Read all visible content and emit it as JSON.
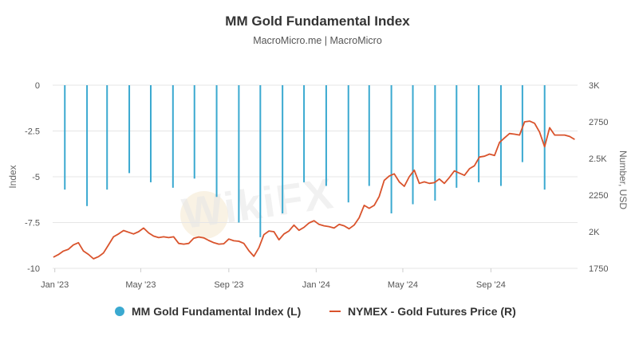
{
  "header": {
    "title": "MM Gold Fundamental Index",
    "subtitle": "MacroMicro.me | MacroMicro"
  },
  "watermark": "WikiFX",
  "colors": {
    "index_bars": "#3aa9d0",
    "gold_line": "#d9532c",
    "grid": "#e6e6e6"
  },
  "chart_data": {
    "type": "bar+line",
    "title": "MM Gold Fundamental Index",
    "subtitle": "MacroMicro.me | MacroMicro",
    "ylabel_left": "Index",
    "ylabel_right": "Number, USD",
    "ylim_left": [
      -10,
      0
    ],
    "ylim_right": [
      1750,
      3000
    ],
    "yticks_left": [
      "0",
      "-2.5",
      "-5",
      "-7.5",
      "-10"
    ],
    "yticks_right": [
      "3K",
      "2750",
      "2.5K",
      "2250",
      "2K",
      "1750"
    ],
    "xlim": [
      "2022-12-29",
      "2024-12-31"
    ],
    "xticks": [
      {
        "date": "2023-01-01",
        "label": "Jan '23"
      },
      {
        "date": "2023-05-01",
        "label": "May '23"
      },
      {
        "date": "2023-09-01",
        "label": "Sep '23"
      },
      {
        "date": "2024-01-01",
        "label": "Jan '24"
      },
      {
        "date": "2024-05-01",
        "label": "May '24"
      },
      {
        "date": "2024-09-01",
        "label": "Sep '24"
      }
    ],
    "legend": {
      "position": "bottom"
    },
    "series": [
      {
        "name": "MM Gold Fundamental Index (L)",
        "type": "bar",
        "axis": "left",
        "color": "#3aa9d0",
        "x": [
          "2023-01-15",
          "2023-02-15",
          "2023-03-15",
          "2023-04-15",
          "2023-05-15",
          "2023-06-15",
          "2023-07-15",
          "2023-08-15",
          "2023-09-15",
          "2023-10-15",
          "2023-11-15",
          "2023-12-15",
          "2024-01-15",
          "2024-02-15",
          "2024-03-15",
          "2024-04-15",
          "2024-05-15",
          "2024-06-15",
          "2024-07-15",
          "2024-08-15",
          "2024-09-15",
          "2024-10-15",
          "2024-11-15"
        ],
        "values": [
          -5.7,
          -6.6,
          -5.7,
          -4.8,
          -5.3,
          -5.6,
          -5.1,
          -6.1,
          -7.5,
          -8.3,
          -7.0,
          -5.3,
          -5.5,
          -6.4,
          -5.5,
          -7.0,
          -6.5,
          -6.3,
          -5.6,
          -5.3,
          -5.5,
          -4.2,
          -5.7
        ]
      },
      {
        "name": "NYMEX - Gold Futures Price (R)",
        "type": "line",
        "axis": "right",
        "color": "#d9532c",
        "x": [
          "2022-12-30",
          "2023-01-06",
          "2023-01-13",
          "2023-01-20",
          "2023-01-27",
          "2023-02-03",
          "2023-02-10",
          "2023-02-17",
          "2023-02-24",
          "2023-03-03",
          "2023-03-10",
          "2023-03-17",
          "2023-03-24",
          "2023-03-31",
          "2023-04-07",
          "2023-04-14",
          "2023-04-21",
          "2023-04-28",
          "2023-05-05",
          "2023-05-12",
          "2023-05-19",
          "2023-05-26",
          "2023-06-02",
          "2023-06-09",
          "2023-06-16",
          "2023-06-23",
          "2023-06-30",
          "2023-07-07",
          "2023-07-14",
          "2023-07-21",
          "2023-07-28",
          "2023-08-04",
          "2023-08-11",
          "2023-08-18",
          "2023-08-25",
          "2023-09-01",
          "2023-09-08",
          "2023-09-15",
          "2023-09-22",
          "2023-09-29",
          "2023-10-06",
          "2023-10-13",
          "2023-10-20",
          "2023-10-27",
          "2023-11-03",
          "2023-11-10",
          "2023-11-17",
          "2023-11-24",
          "2023-12-01",
          "2023-12-08",
          "2023-12-15",
          "2023-12-22",
          "2023-12-29",
          "2024-01-05",
          "2024-01-12",
          "2024-01-19",
          "2024-01-26",
          "2024-02-02",
          "2024-02-09",
          "2024-02-16",
          "2024-02-23",
          "2024-03-01",
          "2024-03-08",
          "2024-03-15",
          "2024-03-22",
          "2024-03-29",
          "2024-04-05",
          "2024-04-12",
          "2024-04-19",
          "2024-04-26",
          "2024-05-03",
          "2024-05-10",
          "2024-05-17",
          "2024-05-24",
          "2024-05-31",
          "2024-06-07",
          "2024-06-14",
          "2024-06-21",
          "2024-06-28",
          "2024-07-05",
          "2024-07-12",
          "2024-07-19",
          "2024-07-26",
          "2024-08-02",
          "2024-08-09",
          "2024-08-16",
          "2024-08-23",
          "2024-08-30",
          "2024-09-06",
          "2024-09-13",
          "2024-09-20",
          "2024-09-27",
          "2024-10-04",
          "2024-10-11",
          "2024-10-18",
          "2024-10-25",
          "2024-11-01",
          "2024-11-08",
          "2024-11-15",
          "2024-11-22",
          "2024-11-29",
          "2024-12-06",
          "2024-12-13",
          "2024-12-20",
          "2024-12-27"
        ],
        "values": [
          1826,
          1844,
          1868,
          1880,
          1910,
          1925,
          1868,
          1845,
          1815,
          1830,
          1855,
          1910,
          1965,
          1985,
          2008,
          1996,
          1985,
          2000,
          2025,
          1992,
          1970,
          1960,
          1965,
          1960,
          1965,
          1920,
          1915,
          1920,
          1955,
          1964,
          1958,
          1940,
          1925,
          1915,
          1918,
          1950,
          1938,
          1935,
          1920,
          1870,
          1832,
          1890,
          1980,
          2005,
          2000,
          1945,
          1985,
          2005,
          2045,
          2010,
          2030,
          2060,
          2075,
          2050,
          2040,
          2035,
          2025,
          2050,
          2040,
          2020,
          2045,
          2095,
          2180,
          2160,
          2180,
          2240,
          2350,
          2380,
          2395,
          2340,
          2310,
          2375,
          2420,
          2330,
          2340,
          2330,
          2335,
          2360,
          2330,
          2370,
          2415,
          2400,
          2385,
          2430,
          2450,
          2510,
          2515,
          2530,
          2520,
          2610,
          2640,
          2670,
          2666,
          2660,
          2750,
          2755,
          2740,
          2680,
          2580,
          2710,
          2660,
          2660,
          2660,
          2650,
          2630
        ]
      }
    ]
  },
  "legend": {
    "items": [
      {
        "label": "MM Gold Fundamental Index (L)"
      },
      {
        "label": "NYMEX - Gold Futures Price (R)"
      }
    ]
  }
}
